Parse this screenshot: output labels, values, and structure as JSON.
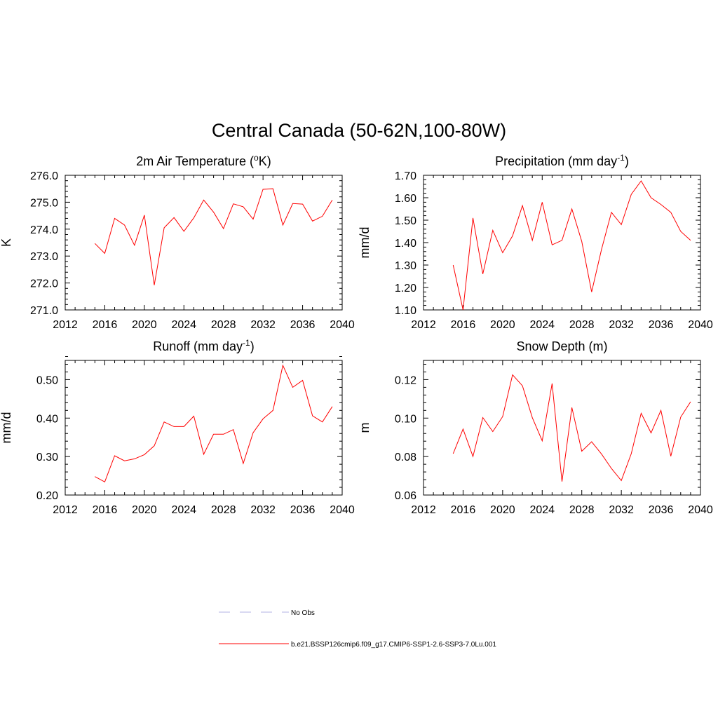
{
  "figure": {
    "title": "Central Canada (50-62N,100-80W)"
  },
  "chart_data": [
    {
      "type": "line",
      "title": "2m Air Temperature (",
      "title_sup": "o",
      "title_end": "K)",
      "ylabel": "K",
      "xlim": [
        2012,
        2040
      ],
      "ylim": [
        271.0,
        276.0
      ],
      "xticks": [
        2012,
        2016,
        2020,
        2024,
        2028,
        2032,
        2036,
        2040
      ],
      "xtick_labels": [
        "2012",
        "2016",
        "2020",
        "2024",
        "2028",
        "2032",
        "2036",
        "2040"
      ],
      "yticks": [
        271.0,
        272.0,
        273.0,
        274.0,
        275.0,
        276.0
      ],
      "ytick_labels": [
        "271.0",
        "272.0",
        "273.0",
        "274.0",
        "275.0",
        "276.0"
      ],
      "x": [
        2015,
        2016,
        2017,
        2018,
        2019,
        2020,
        2021,
        2022,
        2023,
        2024,
        2025,
        2026,
        2027,
        2028,
        2029,
        2030,
        2031,
        2032,
        2033,
        2034,
        2035,
        2036,
        2037,
        2038,
        2039
      ],
      "series": [
        {
          "values": [
            273.47,
            273.1,
            274.4,
            274.15,
            273.4,
            274.52,
            271.92,
            274.05,
            274.43,
            273.92,
            274.42,
            275.08,
            274.63,
            274.02,
            274.94,
            274.83,
            274.37,
            275.48,
            275.5,
            274.15,
            274.95,
            274.93,
            274.3,
            274.48,
            275.08
          ],
          "color": "#ff0000"
        }
      ]
    },
    {
      "type": "line",
      "title": "Precipitation (mm day",
      "title_sup": "-1",
      "title_end": ")",
      "ylabel": "mm/d",
      "xlim": [
        2012,
        2040
      ],
      "ylim": [
        1.1,
        1.7
      ],
      "xticks": [
        2012,
        2016,
        2020,
        2024,
        2028,
        2032,
        2036,
        2040
      ],
      "xtick_labels": [
        "2012",
        "2016",
        "2020",
        "2024",
        "2028",
        "2032",
        "2036",
        "2040"
      ],
      "yticks": [
        1.1,
        1.2,
        1.3,
        1.4,
        1.5,
        1.6,
        1.7
      ],
      "ytick_labels": [
        "1.10",
        "1.20",
        "1.30",
        "1.40",
        "1.50",
        "1.60",
        "1.70"
      ],
      "x": [
        2015,
        2016,
        2017,
        2018,
        2019,
        2020,
        2021,
        2022,
        2023,
        2024,
        2025,
        2026,
        2027,
        2028,
        2029,
        2030,
        2031,
        2032,
        2033,
        2034,
        2035,
        2036,
        2037,
        2038,
        2039
      ],
      "series": [
        {
          "values": [
            1.3,
            1.1,
            1.51,
            1.26,
            1.455,
            1.355,
            1.43,
            1.565,
            1.41,
            1.58,
            1.39,
            1.41,
            1.55,
            1.405,
            1.18,
            1.37,
            1.535,
            1.48,
            1.615,
            1.675,
            1.6,
            1.57,
            1.535,
            1.45,
            1.41
          ],
          "color": "#ff0000"
        }
      ]
    },
    {
      "type": "line",
      "title": "Runoff (mm day",
      "title_sup": "-1",
      "title_end": ")",
      "ylabel": "mm/d",
      "xlim": [
        2012,
        2040
      ],
      "ylim": [
        0.2,
        0.55
      ],
      "xticks": [
        2012,
        2016,
        2020,
        2024,
        2028,
        2032,
        2036,
        2040
      ],
      "xtick_labels": [
        "2012",
        "2016",
        "2020",
        "2024",
        "2028",
        "2032",
        "2036",
        "2040"
      ],
      "yticks": [
        0.2,
        0.3,
        0.4,
        0.5
      ],
      "ytick_labels": [
        "0.20",
        "0.30",
        "0.40",
        "0.50"
      ],
      "x": [
        2015,
        2016,
        2017,
        2018,
        2019,
        2020,
        2021,
        2022,
        2023,
        2024,
        2025,
        2026,
        2027,
        2028,
        2029,
        2030,
        2031,
        2032,
        2033,
        2034,
        2035,
        2036,
        2037,
        2038,
        2039
      ],
      "series": [
        {
          "values": [
            0.248,
            0.234,
            0.302,
            0.289,
            0.294,
            0.305,
            0.328,
            0.39,
            0.378,
            0.378,
            0.405,
            0.306,
            0.358,
            0.358,
            0.37,
            0.282,
            0.362,
            0.398,
            0.42,
            0.537,
            0.48,
            0.498,
            0.406,
            0.39,
            0.43
          ],
          "color": "#ff0000"
        }
      ]
    },
    {
      "type": "line",
      "title": "Snow Depth (m)",
      "title_sup": "",
      "title_end": "",
      "ylabel": "m",
      "xlim": [
        2012,
        2040
      ],
      "ylim": [
        0.06,
        0.13
      ],
      "xticks": [
        2012,
        2016,
        2020,
        2024,
        2028,
        2032,
        2036,
        2040
      ],
      "xtick_labels": [
        "2012",
        "2016",
        "2020",
        "2024",
        "2028",
        "2032",
        "2036",
        "2040"
      ],
      "yticks": [
        0.06,
        0.08,
        0.1,
        0.12
      ],
      "ytick_labels": [
        "0.06",
        "0.08",
        "0.10",
        "0.12"
      ],
      "x": [
        2015,
        2016,
        2017,
        2018,
        2019,
        2020,
        2021,
        2022,
        2023,
        2024,
        2025,
        2026,
        2027,
        2028,
        2029,
        2030,
        2031,
        2032,
        2033,
        2034,
        2035,
        2036,
        2037,
        2038,
        2039
      ],
      "series": [
        {
          "values": [
            0.0815,
            0.0943,
            0.08,
            0.1003,
            0.093,
            0.1008,
            0.1225,
            0.1168,
            0.1002,
            0.0882,
            0.118,
            0.067,
            0.1055,
            0.0828,
            0.0877,
            0.0813,
            0.0738,
            0.0675,
            0.0815,
            0.1025,
            0.0923,
            0.104,
            0.0802,
            0.1005,
            0.1085
          ],
          "color": "#ff0000"
        }
      ]
    }
  ],
  "legend": {
    "items": [
      {
        "label": "No Obs",
        "color": "#b3b3e6",
        "style": "dashed"
      },
      {
        "label": "b.e21.BSSP126cmip6.f09_g17.CMIP6-SSP1-2.6-SSP3-7.0Lu.001",
        "color": "#ff0000",
        "style": "solid"
      }
    ]
  }
}
